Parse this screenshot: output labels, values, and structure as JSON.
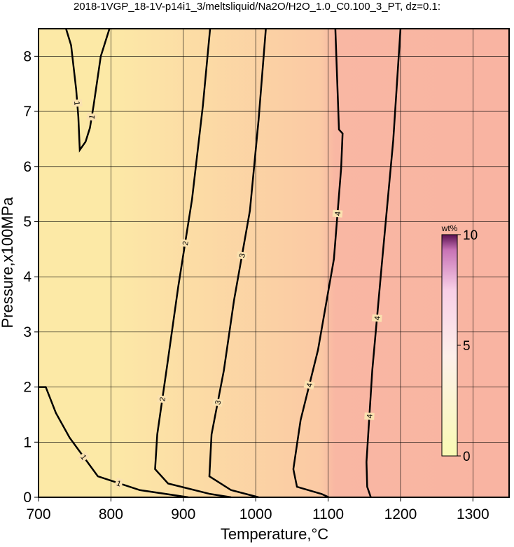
{
  "chart_data": {
    "type": "contour",
    "title": "2018-1VGP_18-1V-p14i1_3/meltsliquid/Na2O/H2O_1.0_C0.100_3_PT, dz=0.1:",
    "x_label": "Temperature,°C",
    "y_label": "Pressure,x100MPa",
    "xlim": [
      700,
      1350
    ],
    "ylim": [
      0,
      8.5
    ],
    "xticks": [
      700,
      800,
      900,
      1000,
      1100,
      1200,
      1300
    ],
    "yticks": [
      0,
      1,
      2,
      3,
      4,
      5,
      6,
      7,
      8
    ],
    "grid": true,
    "line_color": "#000000",
    "contours": [
      {
        "level": 1,
        "x": [
          738,
          745,
          752,
          755,
          757,
          765,
          771,
          776,
          786,
          798
        ],
        "y": [
          8.5,
          8.2,
          7.4,
          6.9,
          6.3,
          6.45,
          6.7,
          7.1,
          8.0,
          8.5
        ]
      },
      {
        "level": 1,
        "x": [
          700,
          710,
          724,
          743,
          782,
          840,
          907
        ],
        "y": [
          2.0,
          2.0,
          1.53,
          1.08,
          0.38,
          0.13,
          0
        ]
      },
      {
        "level": 2,
        "x": [
          937,
          927,
          912,
          893,
          878,
          864,
          861,
          879,
          937,
          966
        ],
        "y": [
          8.5,
          7.1,
          5.4,
          3.82,
          2.42,
          1.14,
          0.51,
          0.25,
          0.06,
          0
        ]
      },
      {
        "level": 3,
        "x": [
          1014,
          1004,
          992,
          970,
          956,
          939,
          936,
          966,
          1004
        ],
        "y": [
          8.5,
          6.85,
          5.2,
          3.57,
          2.3,
          1.14,
          0.38,
          0.13,
          0
        ]
      },
      {
        "level": 4,
        "x": [
          1110,
          1115,
          1120,
          1118,
          1108,
          1086,
          1062,
          1052,
          1057,
          1091,
          1101
        ],
        "y": [
          8.5,
          6.67,
          6.6,
          5.97,
          4.32,
          2.67,
          1.4,
          0.51,
          0.19,
          0.06,
          0
        ]
      },
      {
        "level": 4,
        "x": [
          1200,
          1190,
          1174,
          1161,
          1153,
          1154,
          1159
        ],
        "y": [
          8.5,
          6.48,
          4.2,
          2.3,
          0.64,
          0.19,
          0
        ]
      }
    ],
    "colorbar": {
      "label": "wt%",
      "lim": [
        0,
        10
      ],
      "ticks": [
        0,
        5,
        10
      ]
    }
  }
}
